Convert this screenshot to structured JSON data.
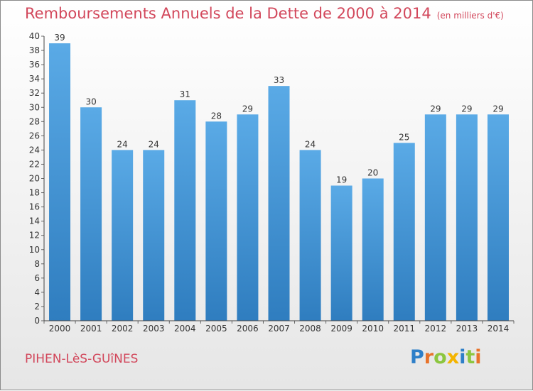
{
  "title": "Remboursements Annuels de la Dette de 2000 à 2014",
  "subtitle": "(en milliers d'€)",
  "commune": "PIHEN-LèS-GUîNES",
  "logo": {
    "text": "Proxiti",
    "colors": [
      "#2e7fc8",
      "#e8732a",
      "#8cc63f",
      "#f4b400",
      "#2e7fc8",
      "#8cc63f",
      "#e8732a"
    ]
  },
  "colors": {
    "title": "#d2475b",
    "bar_top": "#5aaae6",
    "bar_bottom": "#2f7dbf",
    "axis": "#444444",
    "grid_tick": "#666666"
  },
  "chart_data": {
    "type": "bar",
    "title": "Remboursements Annuels de la Dette de 2000 à 2014",
    "subtitle": "(en milliers d'€)",
    "xlabel": "",
    "ylabel": "",
    "ylim": [
      0,
      40
    ],
    "yticks": [
      0,
      2,
      4,
      6,
      8,
      10,
      12,
      14,
      16,
      18,
      20,
      22,
      24,
      26,
      28,
      30,
      32,
      34,
      36,
      38,
      40
    ],
    "grid": false,
    "categories": [
      "2000",
      "2001",
      "2002",
      "2003",
      "2004",
      "2005",
      "2006",
      "2007",
      "2008",
      "2009",
      "2010",
      "2011",
      "2012",
      "2013",
      "2014"
    ],
    "values": [
      39,
      30,
      24,
      24,
      31,
      28,
      29,
      33,
      24,
      19,
      20,
      25,
      29,
      29,
      29
    ]
  }
}
